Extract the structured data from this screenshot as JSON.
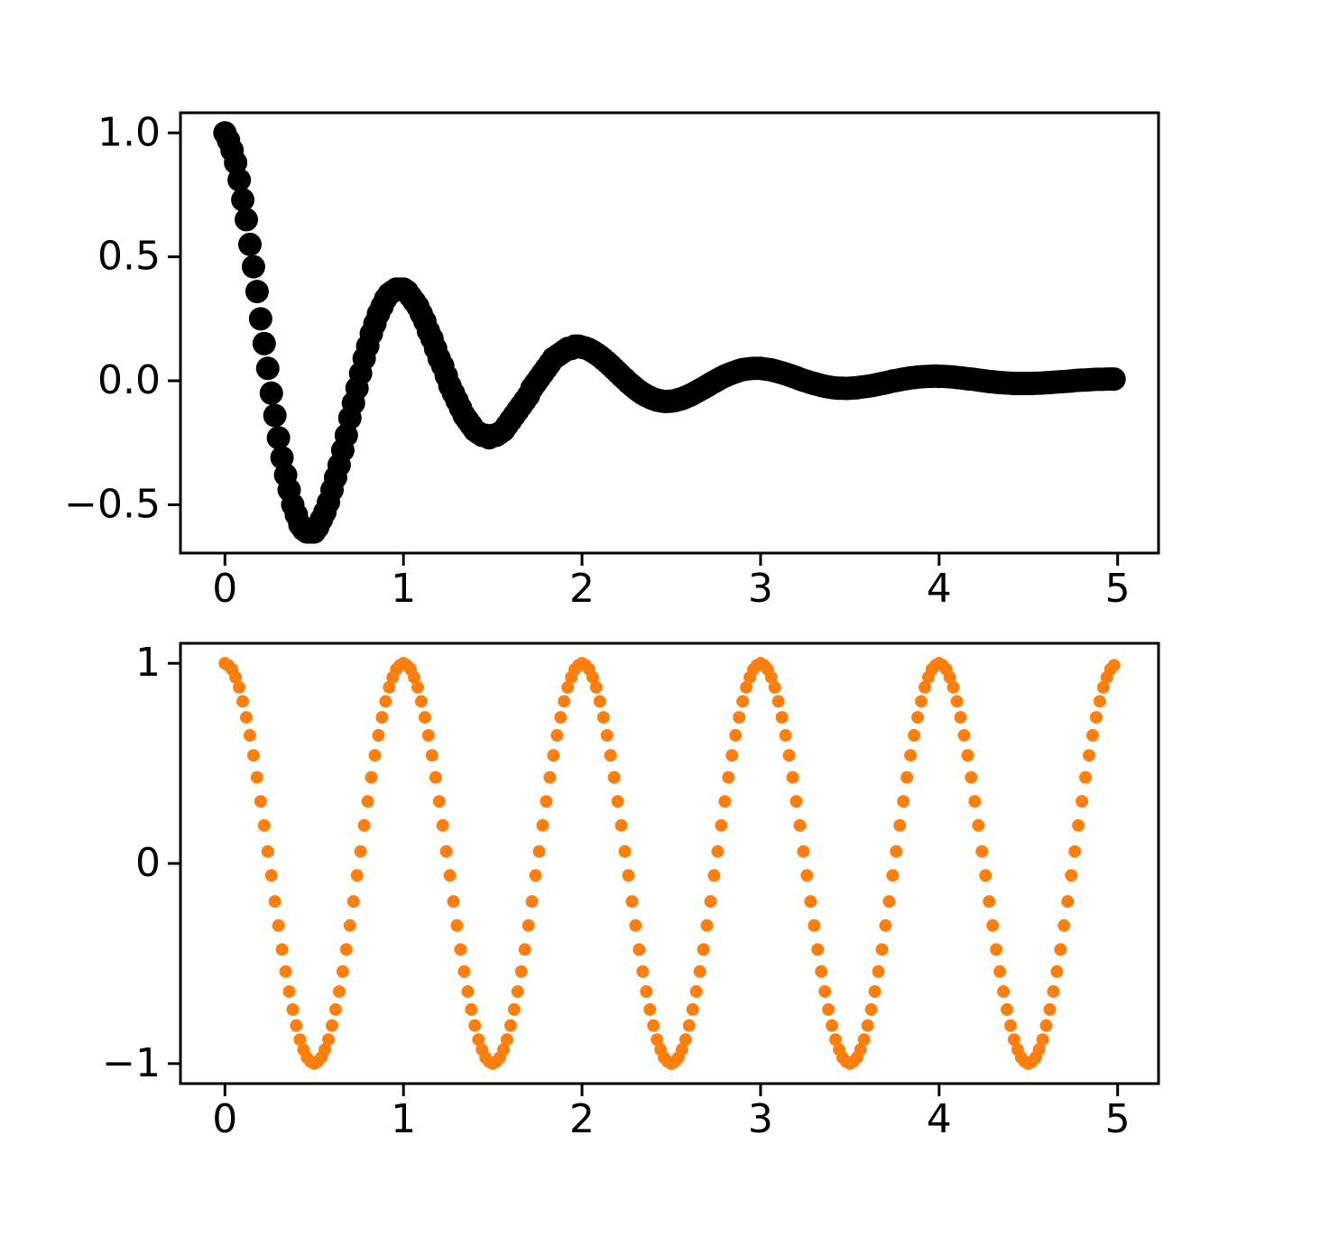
{
  "chart_data": [
    {
      "type": "scatter",
      "color": "#000000",
      "x": [
        0,
        0.02,
        0.04,
        0.06,
        0.08,
        0.1,
        0.12,
        0.14,
        0.16,
        0.18,
        0.2,
        0.22,
        0.24,
        0.26,
        0.28,
        0.3,
        0.32,
        0.34,
        0.36,
        0.38,
        0.4,
        0.42,
        0.44,
        0.46,
        0.48,
        0.5,
        0.52,
        0.54,
        0.56,
        0.58,
        0.6,
        0.62,
        0.64,
        0.66,
        0.68,
        0.7,
        0.72,
        0.74,
        0.76,
        0.78,
        0.8,
        0.82,
        0.84,
        0.86,
        0.88,
        0.9,
        0.92,
        0.94,
        0.96,
        0.98,
        1,
        1.02,
        1.04,
        1.06,
        1.08,
        1.1,
        1.12,
        1.14,
        1.16,
        1.18,
        1.2,
        1.22,
        1.24,
        1.26,
        1.28,
        1.3,
        1.32,
        1.34,
        1.36,
        1.38,
        1.4,
        1.42,
        1.44,
        1.46,
        1.48,
        1.5,
        1.52,
        1.54,
        1.56,
        1.58,
        1.6,
        1.62,
        1.64,
        1.66,
        1.68,
        1.7,
        1.72,
        1.74,
        1.76,
        1.78,
        1.8,
        1.82,
        1.84,
        1.86,
        1.88,
        1.9,
        1.92,
        1.94,
        1.96,
        1.98,
        2,
        2.02,
        2.04,
        2.06,
        2.08,
        2.1,
        2.12,
        2.14,
        2.16,
        2.18,
        2.2,
        2.22,
        2.24,
        2.26,
        2.28,
        2.3,
        2.32,
        2.34,
        2.36,
        2.38,
        2.4,
        2.42,
        2.44,
        2.46,
        2.48,
        2.5,
        2.52,
        2.54,
        2.56,
        2.58,
        2.6,
        2.62,
        2.64,
        2.66,
        2.68,
        2.7,
        2.72,
        2.74,
        2.76,
        2.78,
        2.8,
        2.82,
        2.84,
        2.86,
        2.88,
        2.9,
        2.92,
        2.94,
        2.96,
        2.98,
        3,
        3.02,
        3.04,
        3.06,
        3.08,
        3.1,
        3.12,
        3.14,
        3.16,
        3.18,
        3.2,
        3.22,
        3.24,
        3.26,
        3.28,
        3.3,
        3.32,
        3.34,
        3.36,
        3.38,
        3.4,
        3.42,
        3.44,
        3.46,
        3.48,
        3.5,
        3.52,
        3.54,
        3.56,
        3.58,
        3.6,
        3.62,
        3.64,
        3.66,
        3.68,
        3.7,
        3.72,
        3.74,
        3.76,
        3.78,
        3.8,
        3.82,
        3.84,
        3.86,
        3.88,
        3.9,
        3.92,
        3.94,
        3.96,
        3.98,
        4,
        4.02,
        4.04,
        4.06,
        4.08,
        4.1,
        4.12,
        4.14,
        4.16,
        4.18,
        4.2,
        4.22,
        4.24,
        4.26,
        4.28,
        4.3,
        4.32,
        4.34,
        4.36,
        4.38,
        4.4,
        4.42,
        4.44,
        4.46,
        4.48,
        4.5,
        4.52,
        4.54,
        4.56,
        4.58,
        4.6,
        4.62,
        4.64,
        4.66,
        4.68,
        4.7,
        4.72,
        4.74,
        4.76,
        4.78,
        4.8,
        4.82,
        4.84,
        4.86,
        4.88,
        4.9,
        4.92,
        4.94,
        4.96,
        4.98
      ],
      "values": [
        1,
        0.97,
        0.93,
        0.88,
        0.81,
        0.73,
        0.65,
        0.55,
        0.46,
        0.36,
        0.25,
        0.15,
        0.05,
        -0.05,
        -0.14,
        -0.23,
        -0.31,
        -0.38,
        -0.44,
        -0.5,
        -0.54,
        -0.58,
        -0.6,
        -0.61,
        -0.61,
        -0.61,
        -0.59,
        -0.56,
        -0.53,
        -0.49,
        -0.44,
        -0.39,
        -0.34,
        -0.28,
        -0.22,
        -0.15,
        -0.09,
        -0.03,
        0.03,
        0.09,
        0.14,
        0.19,
        0.23,
        0.27,
        0.3,
        0.33,
        0.35,
        0.36,
        0.37,
        0.37,
        0.37,
        0.36,
        0.34,
        0.32,
        0.3,
        0.27,
        0.24,
        0.2,
        0.17,
        0.13,
        0.09,
        0.06,
        0.02,
        -0.02,
        -0.05,
        -0.08,
        -0.11,
        -0.14,
        -0.16,
        -0.18,
        -0.2,
        -0.21,
        -0.22,
        -0.22,
        -0.23,
        -0.22,
        -0.22,
        -0.21,
        -0.2,
        -0.18,
        -0.16,
        -0.14,
        -0.12,
        -0.1,
        -0.08,
        -0.06,
        -0.03,
        -0.01,
        0.01,
        0.03,
        0.05,
        0.07,
        0.09,
        0.1,
        0.11,
        0.12,
        0.13,
        0.13,
        0.14,
        0.14,
        0.135,
        0.132,
        0.126,
        0.118,
        0.109,
        0.099,
        0.087,
        0.075,
        0.062,
        0.048,
        0.034,
        0.02,
        0.007,
        -0.007,
        -0.019,
        -0.031,
        -0.042,
        -0.052,
        -0.06,
        -0.067,
        -0.073,
        -0.078,
        -0.081,
        -0.083,
        -0.083,
        -0.082,
        -0.08,
        -0.076,
        -0.072,
        -0.066,
        -0.06,
        -0.053,
        -0.045,
        -0.037,
        -0.029,
        -0.021,
        -0.012,
        -0.004,
        0.004,
        0.012,
        0.019,
        0.025,
        0.031,
        0.036,
        0.041,
        0.045,
        0.047,
        0.049,
        0.05,
        0.05,
        0.05,
        0.048,
        0.046,
        0.044,
        0.04,
        0.036,
        0.032,
        0.028,
        0.023,
        0.018,
        0.013,
        0.007,
        0.002,
        -0.002,
        -0.007,
        -0.011,
        -0.015,
        -0.019,
        -0.022,
        -0.025,
        -0.027,
        -0.029,
        -0.03,
        -0.03,
        -0.031,
        -0.03,
        -0.029,
        -0.028,
        -0.026,
        -0.024,
        -0.022,
        -0.02,
        -0.017,
        -0.014,
        -0.011,
        -0.008,
        -0.005,
        -0.001,
        0.001,
        0.004,
        0.007,
        0.009,
        0.012,
        0.013,
        0.015,
        0.016,
        0.017,
        0.018,
        0.018,
        0.019,
        0.018,
        0.018,
        0.017,
        0.016,
        0.015,
        0.013,
        0.012,
        0.01,
        0.008,
        0.007,
        0.005,
        0.003,
        0.001,
        -0.001,
        -0.003,
        -0.004,
        -0.006,
        -0.007,
        -0.008,
        -0.009,
        -0.01,
        -0.011,
        -0.011,
        -0.011,
        -0.011,
        -0.011,
        -0.011,
        -0.01,
        -0.01,
        -0.009,
        -0.008,
        -0.007,
        -0.006,
        -0.005,
        -0.004,
        -0.003,
        -0.002,
        -0.001,
        0.001,
        0.002,
        0.003,
        0.003,
        0.004,
        0.005,
        0.006,
        0.006,
        0.006,
        0.007,
        0.007,
        0.007
      ],
      "xlim": [
        -0.249,
        5.229
      ],
      "ylim": [
        -0.695,
        1.081
      ],
      "xticks": [
        0,
        1,
        2,
        3,
        4,
        5
      ],
      "yticks": [
        {
          "value": -0.5,
          "label": "−0.5"
        },
        {
          "value": 0,
          "label": "0.0"
        },
        0.5,
        {
          "value": 1,
          "label": "1.0"
        }
      ]
    },
    {
      "type": "scatter",
      "color": "#ff7f0e",
      "x": [
        0,
        0.02,
        0.04,
        0.06,
        0.08,
        0.1,
        0.12,
        0.14,
        0.16,
        0.18,
        0.2,
        0.22,
        0.24,
        0.26,
        0.28,
        0.3,
        0.32,
        0.34,
        0.36,
        0.38,
        0.4,
        0.42,
        0.44,
        0.46,
        0.48,
        0.5,
        0.52,
        0.54,
        0.56,
        0.58,
        0.6,
        0.62,
        0.64,
        0.66,
        0.68,
        0.7,
        0.72,
        0.74,
        0.76,
        0.78,
        0.8,
        0.82,
        0.84,
        0.86,
        0.88,
        0.9,
        0.92,
        0.94,
        0.96,
        0.98,
        1,
        1.02,
        1.04,
        1.06,
        1.08,
        1.1,
        1.12,
        1.14,
        1.16,
        1.18,
        1.2,
        1.22,
        1.24,
        1.26,
        1.28,
        1.3,
        1.32,
        1.34,
        1.36,
        1.38,
        1.4,
        1.42,
        1.44,
        1.46,
        1.48,
        1.5,
        1.52,
        1.54,
        1.56,
        1.58,
        1.6,
        1.62,
        1.64,
        1.66,
        1.68,
        1.7,
        1.72,
        1.74,
        1.76,
        1.78,
        1.8,
        1.82,
        1.84,
        1.86,
        1.88,
        1.9,
        1.92,
        1.94,
        1.96,
        1.98,
        2,
        2.02,
        2.04,
        2.06,
        2.08,
        2.1,
        2.12,
        2.14,
        2.16,
        2.18,
        2.2,
        2.22,
        2.24,
        2.26,
        2.28,
        2.3,
        2.32,
        2.34,
        2.36,
        2.38,
        2.4,
        2.42,
        2.44,
        2.46,
        2.48,
        2.5,
        2.52,
        2.54,
        2.56,
        2.58,
        2.6,
        2.62,
        2.64,
        2.66,
        2.68,
        2.7,
        2.72,
        2.74,
        2.76,
        2.78,
        2.8,
        2.82,
        2.84,
        2.86,
        2.88,
        2.9,
        2.92,
        2.94,
        2.96,
        2.98,
        3,
        3.02,
        3.04,
        3.06,
        3.08,
        3.1,
        3.12,
        3.14,
        3.16,
        3.18,
        3.2,
        3.22,
        3.24,
        3.26,
        3.28,
        3.3,
        3.32,
        3.34,
        3.36,
        3.38,
        3.4,
        3.42,
        3.44,
        3.46,
        3.48,
        3.5,
        3.52,
        3.54,
        3.56,
        3.58,
        3.6,
        3.62,
        3.64,
        3.66,
        3.68,
        3.7,
        3.72,
        3.74,
        3.76,
        3.78,
        3.8,
        3.82,
        3.84,
        3.86,
        3.88,
        3.9,
        3.92,
        3.94,
        3.96,
        3.98,
        4,
        4.02,
        4.04,
        4.06,
        4.08,
        4.1,
        4.12,
        4.14,
        4.16,
        4.18,
        4.2,
        4.22,
        4.24,
        4.26,
        4.28,
        4.3,
        4.32,
        4.34,
        4.36,
        4.38,
        4.4,
        4.42,
        4.44,
        4.46,
        4.48,
        4.5,
        4.52,
        4.54,
        4.56,
        4.58,
        4.6,
        4.62,
        4.64,
        4.66,
        4.68,
        4.7,
        4.72,
        4.74,
        4.76,
        4.78,
        4.8,
        4.82,
        4.84,
        4.86,
        4.88,
        4.9,
        4.92,
        4.94,
        4.96,
        4.98
      ],
      "values": [
        1,
        0.99,
        0.97,
        0.93,
        0.88,
        0.81,
        0.73,
        0.64,
        0.54,
        0.43,
        0.31,
        0.19,
        0.06,
        -0.06,
        -0.19,
        -0.31,
        -0.43,
        -0.54,
        -0.64,
        -0.73,
        -0.81,
        -0.88,
        -0.93,
        -0.97,
        -0.99,
        -1,
        -0.99,
        -0.97,
        -0.93,
        -0.88,
        -0.81,
        -0.73,
        -0.64,
        -0.54,
        -0.43,
        -0.31,
        -0.19,
        -0.06,
        0.06,
        0.19,
        0.31,
        0.43,
        0.54,
        0.64,
        0.73,
        0.81,
        0.88,
        0.93,
        0.97,
        0.99,
        1,
        0.99,
        0.97,
        0.93,
        0.88,
        0.81,
        0.73,
        0.64,
        0.54,
        0.43,
        0.31,
        0.19,
        0.06,
        -0.06,
        -0.19,
        -0.31,
        -0.43,
        -0.54,
        -0.64,
        -0.73,
        -0.81,
        -0.88,
        -0.93,
        -0.97,
        -0.99,
        -1,
        -0.99,
        -0.97,
        -0.93,
        -0.88,
        -0.81,
        -0.73,
        -0.64,
        -0.54,
        -0.43,
        -0.31,
        -0.19,
        -0.06,
        0.06,
        0.19,
        0.31,
        0.43,
        0.54,
        0.64,
        0.73,
        0.81,
        0.88,
        0.93,
        0.97,
        0.99,
        1,
        0.99,
        0.97,
        0.93,
        0.88,
        0.81,
        0.73,
        0.64,
        0.54,
        0.43,
        0.31,
        0.19,
        0.06,
        -0.06,
        -0.19,
        -0.31,
        -0.43,
        -0.54,
        -0.64,
        -0.73,
        -0.81,
        -0.88,
        -0.93,
        -0.97,
        -0.99,
        -1,
        -0.99,
        -0.97,
        -0.93,
        -0.88,
        -0.81,
        -0.73,
        -0.64,
        -0.54,
        -0.43,
        -0.31,
        -0.19,
        -0.06,
        0.06,
        0.19,
        0.31,
        0.43,
        0.54,
        0.64,
        0.73,
        0.81,
        0.88,
        0.93,
        0.97,
        0.99,
        1,
        0.99,
        0.97,
        0.93,
        0.88,
        0.81,
        0.73,
        0.64,
        0.54,
        0.43,
        0.31,
        0.19,
        0.06,
        -0.06,
        -0.19,
        -0.31,
        -0.43,
        -0.54,
        -0.64,
        -0.73,
        -0.81,
        -0.88,
        -0.93,
        -0.97,
        -0.99,
        -1,
        -0.99,
        -0.97,
        -0.93,
        -0.88,
        -0.81,
        -0.73,
        -0.64,
        -0.54,
        -0.43,
        -0.31,
        -0.19,
        -0.06,
        0.06,
        0.19,
        0.31,
        0.43,
        0.54,
        0.64,
        0.73,
        0.81,
        0.88,
        0.93,
        0.97,
        0.99,
        1,
        0.99,
        0.97,
        0.93,
        0.88,
        0.81,
        0.73,
        0.64,
        0.54,
        0.43,
        0.31,
        0.19,
        0.06,
        -0.06,
        -0.19,
        -0.31,
        -0.43,
        -0.54,
        -0.64,
        -0.73,
        -0.81,
        -0.88,
        -0.93,
        -0.97,
        -0.99,
        -1,
        -0.99,
        -0.97,
        -0.93,
        -0.88,
        -0.81,
        -0.73,
        -0.64,
        -0.54,
        -0.43,
        -0.31,
        -0.19,
        -0.06,
        0.06,
        0.19,
        0.31,
        0.43,
        0.54,
        0.64,
        0.73,
        0.81,
        0.88,
        0.93,
        0.97,
        0.99
      ],
      "xlim": [
        -0.249,
        5.229
      ],
      "ylim": [
        -1.1,
        1.1
      ],
      "xticks": [
        0,
        1,
        2,
        3,
        4,
        5
      ],
      "yticks": [
        {
          "value": -1,
          "label": "−1"
        },
        0,
        1
      ]
    }
  ]
}
